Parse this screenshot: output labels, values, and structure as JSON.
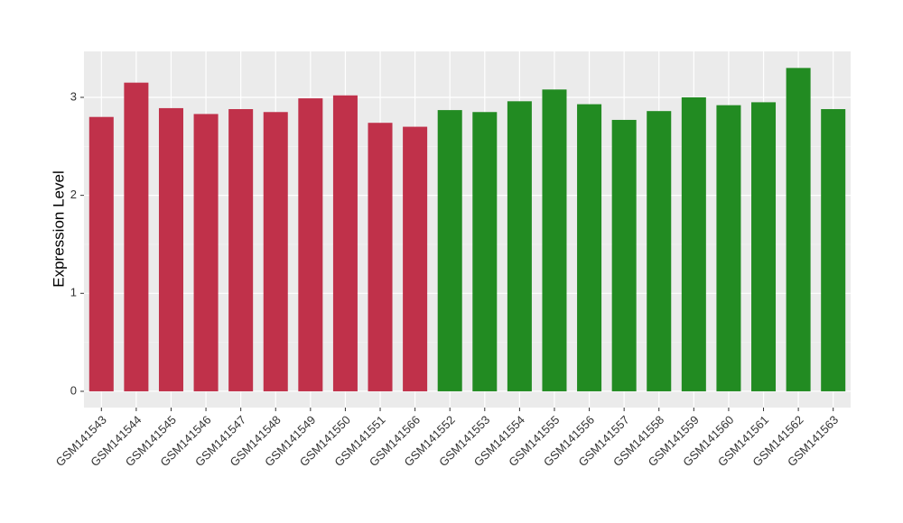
{
  "chart_data": {
    "type": "bar",
    "y_label": "Expression Level",
    "categories": [
      "GSM141543",
      "GSM141544",
      "GSM141545",
      "GSM141546",
      "GSM141547",
      "GSM141548",
      "GSM141549",
      "GSM141550",
      "GSM141551",
      "GSM141566",
      "GSM141552",
      "GSM141553",
      "GSM141554",
      "GSM141555",
      "GSM141556",
      "GSM141557",
      "GSM141558",
      "GSM141559",
      "GSM141560",
      "GSM141561",
      "GSM141562",
      "GSM141563"
    ],
    "values": [
      2.8,
      3.15,
      2.89,
      2.83,
      2.88,
      2.85,
      2.99,
      3.02,
      2.74,
      2.7,
      2.87,
      2.85,
      2.96,
      3.08,
      2.93,
      2.77,
      2.86,
      3.0,
      2.92,
      2.95,
      3.3,
      2.88
    ],
    "colors": [
      "#c0314a",
      "#c0314a",
      "#c0314a",
      "#c0314a",
      "#c0314a",
      "#c0314a",
      "#c0314a",
      "#c0314a",
      "#c0314a",
      "#c0314a",
      "#228b22",
      "#228b22",
      "#228b22",
      "#228b22",
      "#228b22",
      "#228b22",
      "#228b22",
      "#228b22",
      "#228b22",
      "#228b22",
      "#228b22",
      "#228b22"
    ],
    "ylim": [
      -0.166,
      3.469
    ],
    "yticks": [
      0,
      1,
      2,
      3
    ],
    "grid": true
  }
}
